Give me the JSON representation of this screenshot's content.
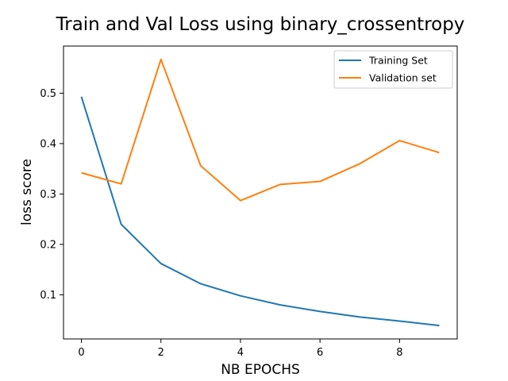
{
  "chart_data": {
    "type": "line",
    "title": "Train and Val Loss using binary_crossentropy",
    "xlabel": "NB EPOCHS",
    "ylabel": "loss score",
    "x": [
      0,
      1,
      2,
      3,
      4,
      5,
      6,
      7,
      8,
      9
    ],
    "xlim": [
      -0.45,
      9.45
    ],
    "ylim": [
      0.0125,
      0.5935
    ],
    "xticks": [
      0,
      2,
      4,
      6,
      8
    ],
    "yticks": [
      0.1,
      0.2,
      0.3,
      0.4,
      0.5
    ],
    "xtick_labels": [
      "0",
      "2",
      "4",
      "6",
      "8"
    ],
    "ytick_labels": [
      "0.1",
      "0.2",
      "0.3",
      "0.4",
      "0.5"
    ],
    "grid": false,
    "legend": {
      "position": "top-right"
    },
    "series": [
      {
        "name": "Training Set",
        "color": "#1f77b4",
        "values": [
          0.493,
          0.24,
          0.162,
          0.122,
          0.098,
          0.08,
          0.067,
          0.056,
          0.048,
          0.039
        ]
      },
      {
        "name": "Validation set",
        "color": "#ff7f0e",
        "values": [
          0.342,
          0.32,
          0.567,
          0.356,
          0.287,
          0.319,
          0.325,
          0.36,
          0.406,
          0.382
        ]
      }
    ]
  }
}
